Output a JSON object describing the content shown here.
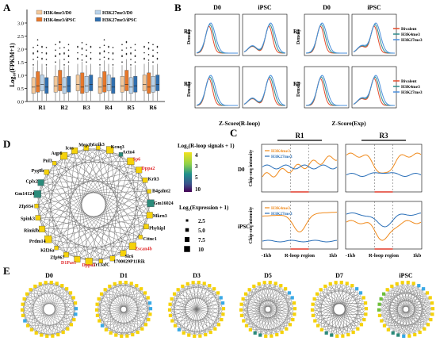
{
  "panels": {
    "A": {
      "letter": "A",
      "ylabel": "Log₁₀(FPKM+1)",
      "yticks": [
        "0.0",
        "0.5",
        "1.0",
        "1.5",
        "2.0",
        "2.5",
        "3.0"
      ],
      "categories": [
        "R1",
        "R2",
        "R3",
        "R4",
        "R5",
        "R6"
      ],
      "legend": [
        "H3K4me3/D0",
        "H3K4me3/iPSC",
        "H3K27me3/D0",
        "H3K27me3/iPSC"
      ]
    },
    "B": {
      "letter": "B",
      "col_titles": [
        "D0",
        "iPSC",
        "D0",
        "iPSC"
      ],
      "row_labels": [
        "R1",
        "R3",
        "R1",
        "R3"
      ],
      "ylabel": "Density",
      "xlabel_left": "Z-Score(R-loop)",
      "xlabel_right": "Z-Score(Exp)",
      "legend": [
        "Bivalent",
        "H3K4me3",
        "H3K27me3"
      ]
    },
    "C": {
      "letter": "C",
      "col_titles": [
        "R1",
        "R3"
      ],
      "row_labels": [
        "D0",
        "iPSC"
      ],
      "ylabel": "Chip-seq intensity",
      "xticks": [
        "-1kb",
        "R-loop region",
        "1kb"
      ],
      "legend": [
        "H3K4me3",
        "H3K27me3"
      ]
    },
    "D": {
      "letter": "D",
      "genes": [
        "Actn4",
        "Sp6",
        "Dppa2",
        "Krit3",
        "B4galnt2",
        "Gm16024",
        "Mkrn3",
        "Phyhipl",
        "Cttnc1",
        "Zscan4b",
        "Slc6",
        "1700029P11Rik",
        "Tr13afC",
        "Dppa3",
        "D1Pas1",
        "Zfp967",
        "Kif26a",
        "Prdm14",
        "Rimklb",
        "Spink3",
        "Zfp934",
        "Gm14124",
        "Cplx2",
        "Pyg8b",
        "Pnl3",
        "Aqp6",
        "Icos",
        "Mep1b",
        "Grik3",
        "Kcnq3"
      ],
      "scale_title": "Log₂(R-loop signals + 1)",
      "scale_ticks": [
        "4",
        "3",
        "5",
        "10"
      ],
      "size_title": "Log₂(Expression + 1)",
      "size_values": [
        "2.5",
        "5.0",
        "7.5",
        "10"
      ]
    },
    "E": {
      "letter": "E",
      "titles": [
        "D0",
        "D1",
        "D3",
        "D5",
        "D7",
        "iPSC"
      ]
    }
  },
  "colors": {
    "h3k4_d0": "#f3c89a",
    "h3k4_ipsc": "#e8782a",
    "h3k27_d0": "#b9d3ea",
    "h3k27_ipsc": "#2f6fb0",
    "bivalent": "#e64b2a",
    "k4": "#2e8b8b",
    "k27": "#4a8fdc",
    "c_orange": "#f08a1c",
    "c_blue": "#2a6fb8",
    "node_yellow": "#f5d20a",
    "node_teal": "#2b8a7a",
    "node_blue": "#39a9e6",
    "node_green": "#6fbf3a"
  }
}
